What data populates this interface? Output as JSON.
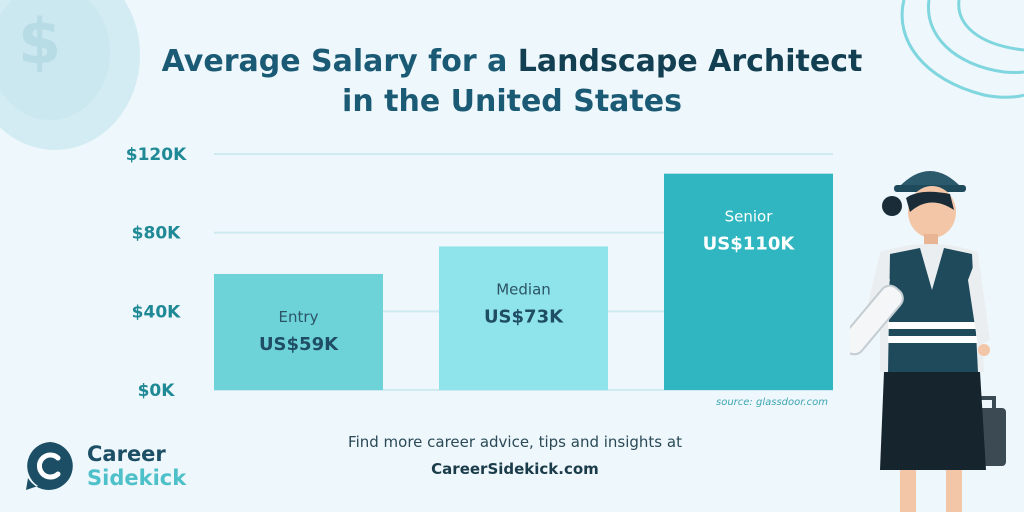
{
  "title": {
    "part1": "Average Salary for a ",
    "highlight": "Landscape Architect",
    "line2": "in the United States"
  },
  "chart_data": {
    "type": "bar",
    "title": "Average Salary for a Landscape Architect in the United States",
    "categories": [
      "Entry",
      "Median",
      "Senior"
    ],
    "values": [
      59,
      73,
      110
    ],
    "value_labels": [
      "US$59K",
      "US$73K",
      "US$110K"
    ],
    "bar_colors": [
      "#6dd3d9",
      "#8fe3ea",
      "#2fb6c0"
    ],
    "y_ticks": [
      "$0K",
      "$40K",
      "$80K",
      "$120K"
    ],
    "y_tick_values": [
      0,
      40,
      80,
      120
    ],
    "ylim": [
      0,
      120
    ],
    "unit": "thousand USD",
    "grid": true
  },
  "source": "source: glassdoor.com",
  "footer": {
    "line1": "Find more career advice, tips and insights at",
    "line2": "CareerSidekick.com"
  },
  "brand": {
    "line1": "Career",
    "line2": "Sidekick"
  },
  "colors": {
    "background": "#eef7fb",
    "title": "#1a5a74",
    "accent": "#2fb6c0"
  },
  "icons": [
    "dollar-coin-icon",
    "career-sidekick-logo-icon",
    "landscape-architect-illustration"
  ]
}
